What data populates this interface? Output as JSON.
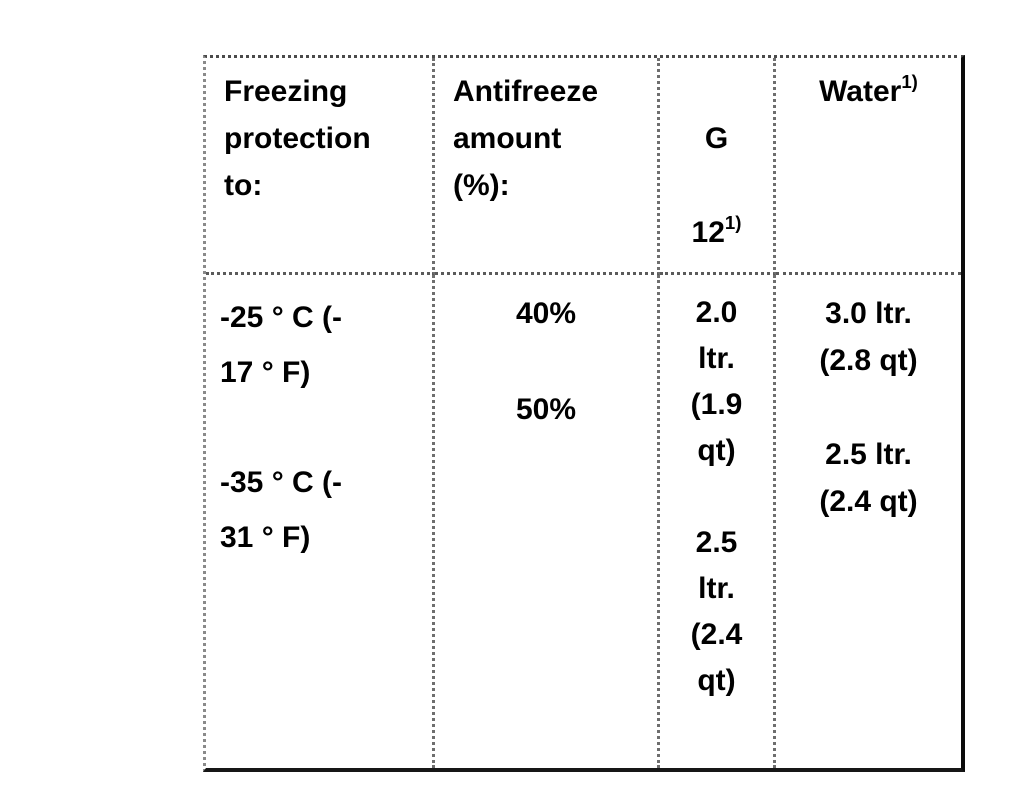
{
  "table": {
    "headers": {
      "col1": "Freezing\nprotection\nto:",
      "col2": "Antifreeze\namount\n(%):",
      "col3_line1": "G",
      "col3_base": "12",
      "col3_sup": "1)",
      "col4_base": "Water",
      "col4_sup": "1)"
    },
    "body": {
      "col1": "-25 ° C (-\n17 ° F)\n\n-35 ° C (-\n31 ° F)",
      "col2": "40%\n\n50%",
      "col3": "2.0\nltr.\n(1.9\nqt)\n\n2.5\nltr.\n(2.4\nqt)",
      "col4": "3.0 ltr.\n(2.8 qt)\n\n2.5 ltr.\n(2.4 qt)"
    },
    "records": [
      {
        "freezing_protection_to": "-25 ° C (-17 ° F)",
        "antifreeze_amount": "40%",
        "g12": "2.0 ltr. (1.9 qt)",
        "water": "3.0 ltr. (2.8 qt)"
      },
      {
        "freezing_protection_to": "-35 ° C (-31 ° F)",
        "antifreeze_amount": "50%",
        "g12": "2.5 ltr. (2.4 qt)",
        "water": "2.5 ltr. (2.4 qt)"
      }
    ],
    "footnote_marker": "1)",
    "colors": {
      "text": "#000000",
      "background": "#ffffff",
      "light_border": "#6e6e6e",
      "dark_border": "#0b0b0b"
    }
  }
}
